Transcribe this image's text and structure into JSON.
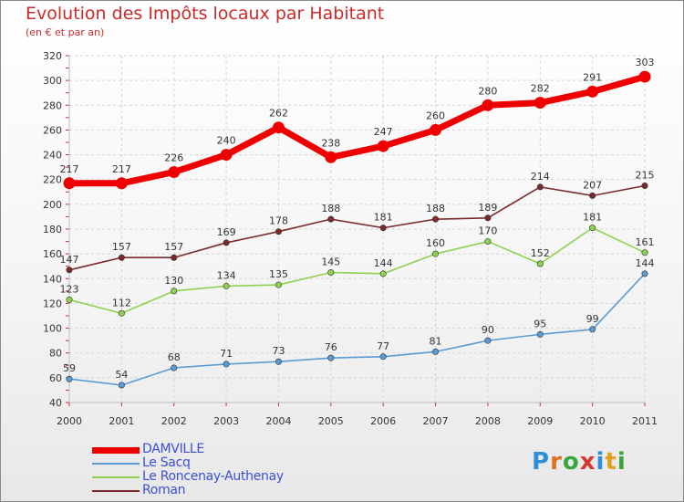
{
  "title": "Evolution des Impôts locaux par Habitant",
  "subtitle": "(en € et par an)",
  "logo_text": "Proxiti",
  "chart_data": {
    "type": "line",
    "title": "Evolution des Impôts locaux par Habitant",
    "subtitle": "(en € et par an)",
    "xlabel": "",
    "ylabel": "",
    "x": [
      "2000",
      "2001",
      "2002",
      "2003",
      "2004",
      "2005",
      "2006",
      "2007",
      "2008",
      "2009",
      "2010",
      "2011"
    ],
    "ylim": [
      40,
      320
    ],
    "yticks": [
      40,
      60,
      80,
      100,
      120,
      140,
      160,
      180,
      200,
      220,
      240,
      260,
      280,
      300,
      320
    ],
    "grid": true,
    "legend_position": "bottom-left",
    "series": [
      {
        "name": "DAMVILLE",
        "color": "#ee0000",
        "values": [
          217,
          217,
          226,
          240,
          262,
          238,
          247,
          260,
          280,
          282,
          291,
          303
        ]
      },
      {
        "name": "Le Sacq",
        "color": "#5b9bd5",
        "values": [
          59,
          54,
          68,
          71,
          73,
          76,
          77,
          81,
          90,
          95,
          99,
          144
        ]
      },
      {
        "name": "Le Roncenay-Authenay",
        "color": "#8fd14f",
        "values": [
          123,
          112,
          130,
          134,
          135,
          145,
          144,
          160,
          170,
          152,
          181,
          161
        ]
      },
      {
        "name": "Roman",
        "color": "#7a2a2a",
        "values": [
          147,
          157,
          157,
          169,
          178,
          188,
          181,
          188,
          189,
          214,
          207,
          215
        ]
      }
    ]
  }
}
